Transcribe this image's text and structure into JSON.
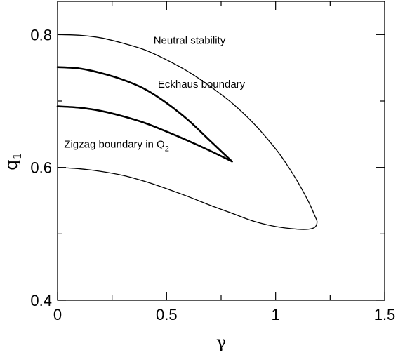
{
  "chart_data": {
    "type": "line",
    "title": "",
    "xlabel": "γ",
    "ylabel": "q",
    "ylabel_subscript": "1",
    "xlim": [
      0,
      1.5
    ],
    "ylim": [
      0.4,
      0.85
    ],
    "x_ticks": [
      {
        "value": 0,
        "label": "0"
      },
      {
        "value": 0.5,
        "label": "0.5"
      },
      {
        "value": 1,
        "label": "1"
      },
      {
        "value": 1.5,
        "label": "1.5"
      }
    ],
    "y_ticks": [
      {
        "value": 0.4,
        "label": "0.4"
      },
      {
        "value": 0.6,
        "label": "0.6"
      },
      {
        "value": 0.8,
        "label": "0.8"
      }
    ],
    "x_minor_ticks": [
      0.25,
      0.75,
      1.25
    ],
    "y_minor_ticks": [
      0.5,
      0.7
    ],
    "grid": false,
    "legend": "none",
    "annotations": [
      {
        "text": "Neutral stability",
        "x": 0.44,
        "y": 0.786
      },
      {
        "text": "Eckhaus boundary",
        "x": 0.46,
        "y": 0.72
      },
      {
        "text": "Zigzag boundary in Q",
        "subscript": "2",
        "x": 0.03,
        "y": 0.63
      }
    ],
    "series": [
      {
        "role": "neutral stability",
        "stroke_width": 1.3,
        "x": [
          0,
          0.1,
          0.2,
          0.3,
          0.4,
          0.5,
          0.6,
          0.7,
          0.8,
          0.9,
          1.0,
          1.05,
          1.1,
          1.15,
          1.18,
          1.19,
          1.18,
          1.15,
          1.1,
          1.0,
          0.9,
          0.8,
          0.7,
          0.6,
          0.5,
          0.4,
          0.3,
          0.2,
          0.1,
          0
        ],
        "y": [
          0.8,
          0.799,
          0.795,
          0.787,
          0.777,
          0.762,
          0.744,
          0.722,
          0.697,
          0.666,
          0.628,
          0.605,
          0.579,
          0.549,
          0.527,
          0.518,
          0.51,
          0.507,
          0.507,
          0.511,
          0.519,
          0.531,
          0.543,
          0.556,
          0.568,
          0.579,
          0.588,
          0.594,
          0.598,
          0.6
        ]
      },
      {
        "role": "Eckhaus boundary",
        "stroke_width": 2.6,
        "x": [
          0,
          0.1,
          0.2,
          0.3,
          0.4,
          0.5,
          0.6,
          0.7,
          0.8
        ],
        "y": [
          0.751,
          0.749,
          0.742,
          0.732,
          0.718,
          0.697,
          0.671,
          0.64,
          0.609
        ]
      },
      {
        "role": "Zigzag boundary in Q2",
        "stroke_width": 2.6,
        "x": [
          0,
          0.1,
          0.2,
          0.3,
          0.4,
          0.5,
          0.6,
          0.7,
          0.8
        ],
        "y": [
          0.692,
          0.69,
          0.685,
          0.677,
          0.667,
          0.654,
          0.64,
          0.625,
          0.609
        ]
      }
    ]
  }
}
